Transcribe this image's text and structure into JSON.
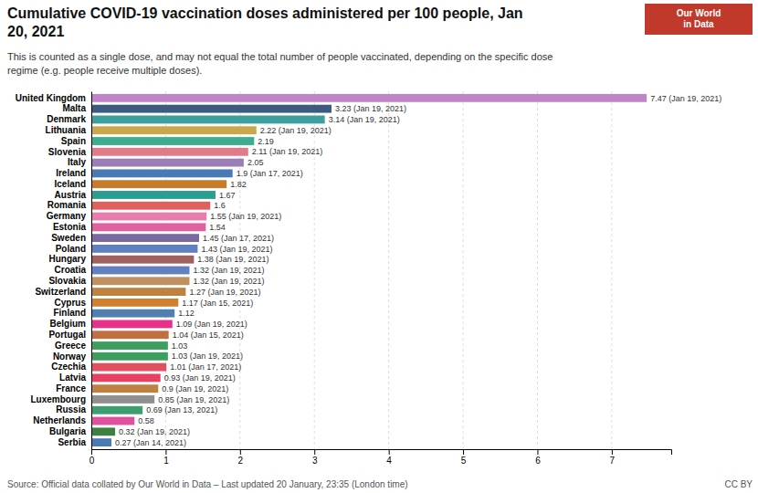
{
  "chart_data": {
    "type": "bar",
    "orientation": "horizontal",
    "title": "Cumulative COVID-19 vaccination doses administered per 100 people, Jan\n20, 2021",
    "subtitle": "This is counted as a single dose, and may not equal the total number of people vaccinated, depending on the specific dose\nregime (e.g. people receive multiple doses).",
    "source": "Source: Official data collated by Our World in Data – Last updated 20 January, 23:35 (London time)",
    "annotations": [
      "Our World\nin Data",
      "CC BY"
    ],
    "categories": [
      "United Kingdom",
      "Malta",
      "Denmark",
      "Lithuania",
      "Spain",
      "Slovenia",
      "Italy",
      "Ireland",
      "Iceland",
      "Austria",
      "Romania",
      "Germany",
      "Estonia",
      "Sweden",
      "Poland",
      "Hungary",
      "Croatia",
      "Slovakia",
      "Switzerland",
      "Cyprus",
      "Finland",
      "Belgium",
      "Portugal",
      "Greece",
      "Norway",
      "Czechia",
      "Latvia",
      "France",
      "Luxembourg",
      "Russia",
      "Netherlands",
      "Bulgaria",
      "Serbia"
    ],
    "values": [
      7.47,
      3.23,
      3.14,
      2.22,
      2.19,
      2.11,
      2.05,
      1.9,
      1.82,
      1.67,
      1.6,
      1.55,
      1.54,
      1.45,
      1.43,
      1.38,
      1.32,
      1.32,
      1.27,
      1.17,
      1.12,
      1.09,
      1.04,
      1.03,
      1.03,
      1.01,
      0.93,
      0.9,
      0.85,
      0.69,
      0.58,
      0.32,
      0.27
    ],
    "value_labels": [
      "7.47 (Jan 19, 2021)",
      "3.23 (Jan 19, 2021)",
      "3.14 (Jan 19, 2021)",
      "2.22 (Jan 19, 2021)",
      "2.19",
      "2.11 (Jan 19, 2021)",
      "2.05",
      "1.9 (Jan 17, 2021)",
      "1.82",
      "1.67",
      "1.6",
      "1.55 (Jan 19, 2021)",
      "1.54",
      "1.45 (Jan 17, 2021)",
      "1.43 (Jan 19, 2021)",
      "1.38 (Jan 19, 2021)",
      "1.32 (Jan 19, 2021)",
      "1.32 (Jan 19, 2021)",
      "1.27 (Jan 19, 2021)",
      "1.17 (Jan 15, 2021)",
      "1.12",
      "1.09 (Jan 19, 2021)",
      "1.04 (Jan 15, 2021)",
      "1.03",
      "1.03 (Jan 19, 2021)",
      "1.01 (Jan 17, 2021)",
      "0.93 (Jan 19, 2021)",
      "0.9 (Jan 19, 2021)",
      "0.85 (Jan 19, 2021)",
      "0.69 (Jan 13, 2021)",
      "0.58",
      "0.32 (Jan 19, 2021)",
      "0.27 (Jan 14, 2021)"
    ],
    "data_labels": true,
    "colors": [
      "#c084c8",
      "#3d5a80",
      "#3d9e9e",
      "#c8a84b",
      "#3dad8f",
      "#e07b8a",
      "#9b7db8",
      "#4a7ab5",
      "#c87c2a",
      "#2a9e8f",
      "#e06060",
      "#e87caf",
      "#e060a0",
      "#7b6a9e",
      "#6080c0",
      "#a06060",
      "#6080c0",
      "#c09060",
      "#c08040",
      "#d08030",
      "#5080b0",
      "#e8308a",
      "#c07040",
      "#3d9e60",
      "#3d9e60",
      "#e05060",
      "#e84060",
      "#c08040",
      "#909090",
      "#3d9e70",
      "#e050a0",
      "#3d8040",
      "#4a7ab5"
    ],
    "xlim": [
      0,
      7.8
    ],
    "xticks": [
      0,
      1,
      2,
      3,
      4,
      5,
      6,
      7
    ],
    "grid": true
  }
}
